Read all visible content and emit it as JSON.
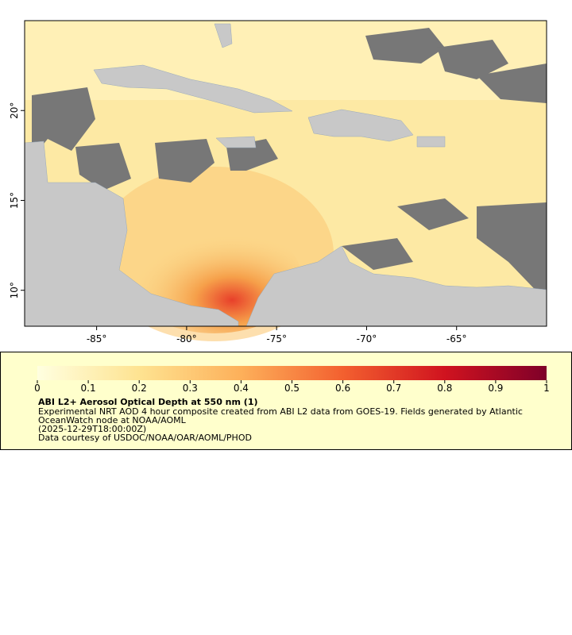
{
  "map": {
    "xlim": [
      -89,
      -60
    ],
    "ylim": [
      8,
      25
    ],
    "xticks": [
      {
        "value": -85,
        "label": "-85°"
      },
      {
        "value": -80,
        "label": "-80°"
      },
      {
        "value": -75,
        "label": "-75°"
      },
      {
        "value": -70,
        "label": "-70°"
      },
      {
        "value": -65,
        "label": "-65°"
      }
    ],
    "yticks": [
      {
        "value": 10,
        "label": "10°"
      },
      {
        "value": 15,
        "label": "15°"
      },
      {
        "value": 20,
        "label": "20°"
      }
    ],
    "colorbar": {
      "range": [
        0,
        1
      ],
      "ticks": [
        0,
        0.1,
        0.2,
        0.3,
        0.4,
        0.5,
        0.6,
        0.7,
        0.8,
        0.9,
        1
      ]
    },
    "legend": {
      "title": "ABI L2+ Aerosol Optical Depth at 550 nm (1)",
      "description": "Experimental NRT AOD 4 hour composite created from ABI L2 data from GOES-19. Fields generated by Atlantic OceanWatch node at NOAA/AOML",
      "time": "(2025-12-29T18:00:00Z)",
      "credit": "Data courtesy of USDOC/NOAA/OAR/AOML/PHOD"
    }
  }
}
